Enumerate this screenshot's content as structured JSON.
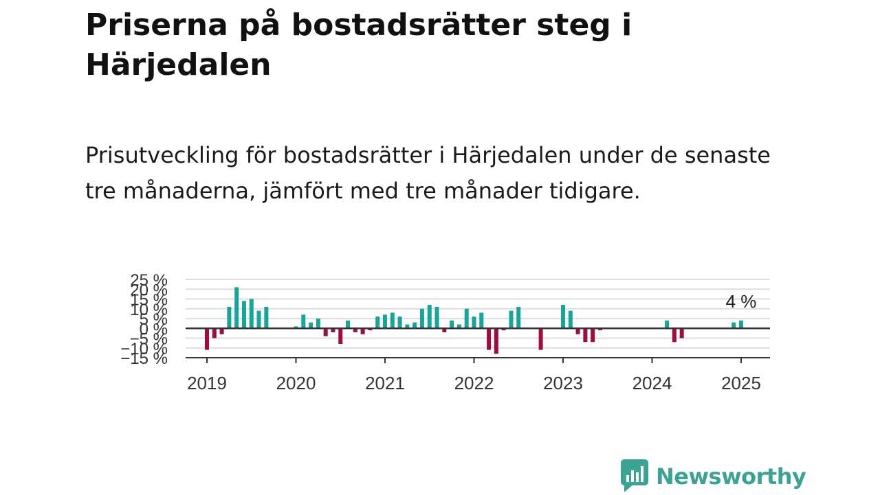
{
  "header": {
    "title": "Priserna på bostadsrätter steg i Härjedalen",
    "subtitle": "Prisutveckling för bostadsrätter i Härjedalen under de senaste tre månaderna, jämfört med tre månader tidigare."
  },
  "brand": {
    "name": "Newsworthy",
    "color": "#3aa394",
    "icon": "newsworthy-logo-icon"
  },
  "colors": {
    "positive": "#15a59a",
    "negative": "#a00b40",
    "grid": "#dddddd",
    "zero": "#333333"
  },
  "chart_data": {
    "type": "bar",
    "y_ticks": [
      25,
      20,
      15,
      10,
      5,
      0,
      -5,
      -10,
      -15
    ],
    "y_tick_labels": [
      "25 %",
      "20 %",
      "15 %",
      "10 %",
      "5 %",
      "0 %",
      "−5 %",
      "−10 %",
      "−15 %"
    ],
    "ylim": [
      -15,
      25
    ],
    "x_tick_labels": [
      "2019",
      "2020",
      "2021",
      "2022",
      "2023",
      "2024",
      "2025"
    ],
    "grid": true,
    "annotation": {
      "text": "4 %",
      "date": "2025-01"
    },
    "points": [
      {
        "date": "2019-01",
        "value": -11
      },
      {
        "date": "2019-02",
        "value": -5
      },
      {
        "date": "2019-03",
        "value": -3
      },
      {
        "date": "2019-04",
        "value": 11
      },
      {
        "date": "2019-05",
        "value": 21
      },
      {
        "date": "2019-06",
        "value": 14
      },
      {
        "date": "2019-07",
        "value": 15
      },
      {
        "date": "2019-08",
        "value": 9
      },
      {
        "date": "2019-09",
        "value": 11
      },
      {
        "date": "2020-01",
        "value": 1
      },
      {
        "date": "2020-02",
        "value": 7
      },
      {
        "date": "2020-03",
        "value": 3
      },
      {
        "date": "2020-04",
        "value": 5
      },
      {
        "date": "2020-05",
        "value": -4
      },
      {
        "date": "2020-06",
        "value": -2
      },
      {
        "date": "2020-07",
        "value": -8
      },
      {
        "date": "2020-08",
        "value": 4
      },
      {
        "date": "2020-09",
        "value": -2
      },
      {
        "date": "2020-10",
        "value": -3
      },
      {
        "date": "2020-11",
        "value": -1
      },
      {
        "date": "2020-12",
        "value": 6
      },
      {
        "date": "2021-01",
        "value": 7
      },
      {
        "date": "2021-02",
        "value": 8
      },
      {
        "date": "2021-03",
        "value": 6
      },
      {
        "date": "2021-04",
        "value": 2
      },
      {
        "date": "2021-05",
        "value": 3
      },
      {
        "date": "2021-06",
        "value": 10
      },
      {
        "date": "2021-07",
        "value": 12
      },
      {
        "date": "2021-08",
        "value": 11
      },
      {
        "date": "2021-09",
        "value": -2
      },
      {
        "date": "2021-10",
        "value": 4
      },
      {
        "date": "2021-11",
        "value": 2
      },
      {
        "date": "2021-12",
        "value": 10
      },
      {
        "date": "2022-01",
        "value": 6
      },
      {
        "date": "2022-02",
        "value": 8
      },
      {
        "date": "2022-03",
        "value": -11
      },
      {
        "date": "2022-04",
        "value": -13
      },
      {
        "date": "2022-05",
        "value": -1
      },
      {
        "date": "2022-06",
        "value": 9
      },
      {
        "date": "2022-07",
        "value": 11
      },
      {
        "date": "2022-10",
        "value": -11
      },
      {
        "date": "2023-01",
        "value": 12
      },
      {
        "date": "2023-02",
        "value": 9
      },
      {
        "date": "2023-03",
        "value": -3
      },
      {
        "date": "2023-04",
        "value": -7
      },
      {
        "date": "2023-05",
        "value": -7
      },
      {
        "date": "2023-06",
        "value": -1
      },
      {
        "date": "2024-03",
        "value": 4
      },
      {
        "date": "2024-04",
        "value": -7
      },
      {
        "date": "2024-05",
        "value": -5
      },
      {
        "date": "2024-12",
        "value": 3
      },
      {
        "date": "2025-01",
        "value": 4
      }
    ]
  }
}
